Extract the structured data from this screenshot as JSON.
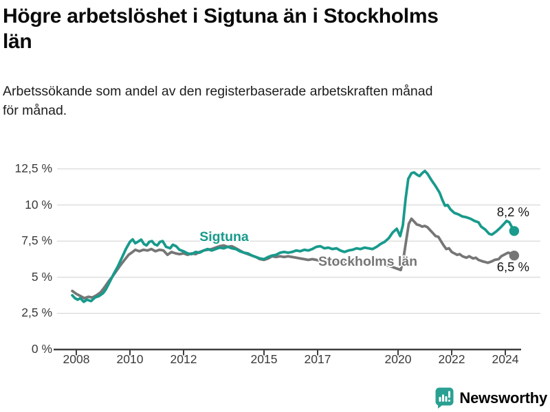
{
  "header": {
    "title": "Högre arbetslöshet i Sigtuna än i Stockholms\nlän",
    "subtitle": "Arbetssökande som andel av den registerbaserade arbetskraften månad\nför månad."
  },
  "chart_data": {
    "type": "line",
    "title": "Högre arbetslöshet i Sigtuna än i Stockholms län",
    "xlabel": "",
    "ylabel": "",
    "grid": "horizontal",
    "xlim": [
      2007.3,
      2025.3
    ],
    "ylim": [
      0,
      13.5
    ],
    "x_ticks": {
      "values": [
        2008,
        2010,
        2012,
        2015,
        2017,
        2020,
        2022,
        2024
      ],
      "labels": [
        "2008",
        "2010",
        "2012",
        "2015",
        "2017",
        "2020",
        "2022",
        "2024"
      ]
    },
    "y_ticks": {
      "values": [
        0,
        2.5,
        5,
        7.5,
        10,
        12.5
      ],
      "labels": [
        "0 %",
        "2,5 %",
        "5 %",
        "7,5 %",
        "10 %",
        "12,5 %"
      ]
    },
    "series": [
      {
        "name": "Sigtuna",
        "color": "#189A8C",
        "end_label": "8,2 %",
        "end_value": 8.2,
        "points": [
          [
            2007.85,
            3.75
          ],
          [
            2007.95,
            3.55
          ],
          [
            2008.05,
            3.45
          ],
          [
            2008.15,
            3.55
          ],
          [
            2008.28,
            3.3
          ],
          [
            2008.4,
            3.45
          ],
          [
            2008.55,
            3.35
          ],
          [
            2008.7,
            3.6
          ],
          [
            2008.85,
            3.7
          ],
          [
            2009.0,
            3.9
          ],
          [
            2009.1,
            4.15
          ],
          [
            2009.25,
            4.7
          ],
          [
            2009.4,
            5.25
          ],
          [
            2009.55,
            5.75
          ],
          [
            2009.7,
            6.35
          ],
          [
            2009.85,
            6.95
          ],
          [
            2010.0,
            7.45
          ],
          [
            2010.1,
            7.62
          ],
          [
            2010.2,
            7.35
          ],
          [
            2010.32,
            7.48
          ],
          [
            2010.42,
            7.6
          ],
          [
            2010.52,
            7.3
          ],
          [
            2010.62,
            7.2
          ],
          [
            2010.72,
            7.45
          ],
          [
            2010.82,
            7.5
          ],
          [
            2010.92,
            7.28
          ],
          [
            2011.02,
            7.2
          ],
          [
            2011.12,
            7.45
          ],
          [
            2011.22,
            7.5
          ],
          [
            2011.35,
            7.1
          ],
          [
            2011.5,
            7.0
          ],
          [
            2011.6,
            7.25
          ],
          [
            2011.72,
            7.15
          ],
          [
            2011.85,
            6.9
          ],
          [
            2012.0,
            6.8
          ],
          [
            2012.15,
            6.65
          ],
          [
            2012.3,
            6.6
          ],
          [
            2012.45,
            6.75
          ],
          [
            2012.6,
            6.7
          ],
          [
            2012.75,
            6.85
          ],
          [
            2012.9,
            6.95
          ],
          [
            2013.05,
            6.85
          ],
          [
            2013.2,
            6.95
          ],
          [
            2013.35,
            7.05
          ],
          [
            2013.5,
            7.0
          ],
          [
            2013.65,
            7.1
          ],
          [
            2013.8,
            7.0
          ],
          [
            2013.95,
            6.95
          ],
          [
            2014.1,
            6.8
          ],
          [
            2014.25,
            6.7
          ],
          [
            2014.4,
            6.65
          ],
          [
            2014.55,
            6.5
          ],
          [
            2014.7,
            6.4
          ],
          [
            2014.85,
            6.3
          ],
          [
            2015.0,
            6.25
          ],
          [
            2015.15,
            6.4
          ],
          [
            2015.3,
            6.5
          ],
          [
            2015.45,
            6.55
          ],
          [
            2015.6,
            6.7
          ],
          [
            2015.75,
            6.75
          ],
          [
            2015.9,
            6.7
          ],
          [
            2016.05,
            6.75
          ],
          [
            2016.2,
            6.85
          ],
          [
            2016.35,
            6.8
          ],
          [
            2016.5,
            6.9
          ],
          [
            2016.65,
            6.85
          ],
          [
            2016.8,
            6.95
          ],
          [
            2016.95,
            7.1
          ],
          [
            2017.1,
            7.15
          ],
          [
            2017.25,
            7.0
          ],
          [
            2017.4,
            7.05
          ],
          [
            2017.55,
            6.95
          ],
          [
            2017.7,
            7.0
          ],
          [
            2017.85,
            6.85
          ],
          [
            2018.0,
            6.75
          ],
          [
            2018.15,
            6.85
          ],
          [
            2018.3,
            6.9
          ],
          [
            2018.45,
            7.0
          ],
          [
            2018.6,
            6.95
          ],
          [
            2018.75,
            7.05
          ],
          [
            2018.9,
            7.0
          ],
          [
            2019.05,
            6.95
          ],
          [
            2019.2,
            7.1
          ],
          [
            2019.35,
            7.3
          ],
          [
            2019.5,
            7.45
          ],
          [
            2019.65,
            7.7
          ],
          [
            2019.8,
            8.1
          ],
          [
            2019.95,
            8.35
          ],
          [
            2020.08,
            7.85
          ],
          [
            2020.18,
            8.6
          ],
          [
            2020.28,
            10.4
          ],
          [
            2020.38,
            11.8
          ],
          [
            2020.5,
            12.2
          ],
          [
            2020.6,
            12.25
          ],
          [
            2020.7,
            12.1
          ],
          [
            2020.8,
            12.0
          ],
          [
            2020.9,
            12.2
          ],
          [
            2021.0,
            12.35
          ],
          [
            2021.1,
            12.15
          ],
          [
            2021.25,
            11.7
          ],
          [
            2021.4,
            11.3
          ],
          [
            2021.55,
            10.85
          ],
          [
            2021.65,
            10.35
          ],
          [
            2021.75,
            9.95
          ],
          [
            2021.85,
            10.0
          ],
          [
            2021.95,
            9.7
          ],
          [
            2022.1,
            9.45
          ],
          [
            2022.25,
            9.35
          ],
          [
            2022.4,
            9.2
          ],
          [
            2022.55,
            9.15
          ],
          [
            2022.7,
            9.05
          ],
          [
            2022.85,
            8.9
          ],
          [
            2023.0,
            8.8
          ],
          [
            2023.1,
            8.5
          ],
          [
            2023.25,
            8.3
          ],
          [
            2023.4,
            8.0
          ],
          [
            2023.5,
            7.95
          ],
          [
            2023.65,
            8.15
          ],
          [
            2023.8,
            8.4
          ],
          [
            2023.95,
            8.7
          ],
          [
            2024.05,
            8.9
          ],
          [
            2024.15,
            8.8
          ],
          [
            2024.25,
            8.45
          ],
          [
            2024.33,
            8.2
          ]
        ]
      },
      {
        "name": "Stockholms län",
        "color": "#767676",
        "end_label": "6,5 %",
        "end_value": 6.5,
        "points": [
          [
            2007.85,
            4.05
          ],
          [
            2008.0,
            3.85
          ],
          [
            2008.15,
            3.7
          ],
          [
            2008.3,
            3.55
          ],
          [
            2008.45,
            3.65
          ],
          [
            2008.6,
            3.6
          ],
          [
            2008.75,
            3.75
          ],
          [
            2008.9,
            3.95
          ],
          [
            2009.05,
            4.3
          ],
          [
            2009.2,
            4.7
          ],
          [
            2009.35,
            5.05
          ],
          [
            2009.5,
            5.45
          ],
          [
            2009.65,
            5.85
          ],
          [
            2009.8,
            6.2
          ],
          [
            2009.95,
            6.55
          ],
          [
            2010.1,
            6.75
          ],
          [
            2010.2,
            6.9
          ],
          [
            2010.35,
            6.8
          ],
          [
            2010.5,
            6.9
          ],
          [
            2010.65,
            6.85
          ],
          [
            2010.8,
            6.95
          ],
          [
            2010.95,
            6.8
          ],
          [
            2011.1,
            6.9
          ],
          [
            2011.25,
            6.85
          ],
          [
            2011.4,
            6.55
          ],
          [
            2011.55,
            6.75
          ],
          [
            2011.7,
            6.65
          ],
          [
            2011.85,
            6.6
          ],
          [
            2012.0,
            6.65
          ],
          [
            2012.15,
            6.55
          ],
          [
            2012.3,
            6.65
          ],
          [
            2012.45,
            6.6
          ],
          [
            2012.6,
            6.75
          ],
          [
            2012.75,
            6.85
          ],
          [
            2012.9,
            6.9
          ],
          [
            2013.05,
            6.95
          ],
          [
            2013.2,
            7.05
          ],
          [
            2013.35,
            7.15
          ],
          [
            2013.5,
            7.2
          ],
          [
            2013.65,
            7.1
          ],
          [
            2013.8,
            7.15
          ],
          [
            2013.95,
            7.0
          ],
          [
            2014.1,
            6.85
          ],
          [
            2014.25,
            6.7
          ],
          [
            2014.4,
            6.6
          ],
          [
            2014.55,
            6.5
          ],
          [
            2014.7,
            6.4
          ],
          [
            2014.85,
            6.25
          ],
          [
            2015.0,
            6.2
          ],
          [
            2015.15,
            6.3
          ],
          [
            2015.3,
            6.45
          ],
          [
            2015.45,
            6.4
          ],
          [
            2015.6,
            6.45
          ],
          [
            2015.75,
            6.4
          ],
          [
            2015.9,
            6.45
          ],
          [
            2016.05,
            6.4
          ],
          [
            2016.2,
            6.35
          ],
          [
            2016.35,
            6.3
          ],
          [
            2016.5,
            6.25
          ],
          [
            2016.65,
            6.2
          ],
          [
            2016.8,
            6.25
          ],
          [
            2016.95,
            6.2
          ],
          [
            2017.1,
            6.15
          ],
          [
            2017.25,
            6.2
          ],
          [
            2017.4,
            6.1
          ],
          [
            2017.55,
            6.15
          ],
          [
            2017.7,
            6.1
          ],
          [
            2017.85,
            6.05
          ],
          [
            2018.0,
            6.1
          ],
          [
            2018.15,
            6.0
          ],
          [
            2018.3,
            6.05
          ],
          [
            2018.45,
            5.95
          ],
          [
            2018.6,
            6.0
          ],
          [
            2018.75,
            5.95
          ],
          [
            2018.9,
            5.9
          ],
          [
            2019.05,
            5.95
          ],
          [
            2019.2,
            5.9
          ],
          [
            2019.35,
            5.85
          ],
          [
            2019.5,
            5.9
          ],
          [
            2019.65,
            5.8
          ],
          [
            2019.8,
            5.7
          ],
          [
            2019.95,
            5.6
          ],
          [
            2020.1,
            5.5
          ],
          [
            2020.2,
            6.3
          ],
          [
            2020.3,
            7.5
          ],
          [
            2020.4,
            8.7
          ],
          [
            2020.5,
            9.05
          ],
          [
            2020.6,
            8.85
          ],
          [
            2020.7,
            8.65
          ],
          [
            2020.8,
            8.6
          ],
          [
            2020.9,
            8.5
          ],
          [
            2021.0,
            8.55
          ],
          [
            2021.1,
            8.45
          ],
          [
            2021.2,
            8.25
          ],
          [
            2021.3,
            8.05
          ],
          [
            2021.4,
            7.85
          ],
          [
            2021.5,
            7.8
          ],
          [
            2021.6,
            7.5
          ],
          [
            2021.7,
            7.2
          ],
          [
            2021.8,
            6.95
          ],
          [
            2021.9,
            7.0
          ],
          [
            2022.0,
            6.75
          ],
          [
            2022.1,
            6.65
          ],
          [
            2022.2,
            6.55
          ],
          [
            2022.3,
            6.6
          ],
          [
            2022.4,
            6.45
          ],
          [
            2022.55,
            6.35
          ],
          [
            2022.65,
            6.45
          ],
          [
            2022.8,
            6.3
          ],
          [
            2022.9,
            6.35
          ],
          [
            2023.0,
            6.2
          ],
          [
            2023.15,
            6.1
          ],
          [
            2023.25,
            6.05
          ],
          [
            2023.35,
            6.0
          ],
          [
            2023.5,
            6.1
          ],
          [
            2023.6,
            6.2
          ],
          [
            2023.75,
            6.25
          ],
          [
            2023.85,
            6.45
          ],
          [
            2024.0,
            6.6
          ],
          [
            2024.1,
            6.7
          ],
          [
            2024.2,
            6.65
          ],
          [
            2024.33,
            6.5
          ]
        ]
      }
    ],
    "legend_position": "inline-labels",
    "colors": {
      "grid": "#D9D9D9",
      "axis": "#3E3E3E",
      "tick_text": "#3a3a3a"
    }
  },
  "footer": {
    "brand": "Newsworthy",
    "brand_color": "#2AA092",
    "logo_icon": "bar-chart-speech-bubble-icon"
  }
}
